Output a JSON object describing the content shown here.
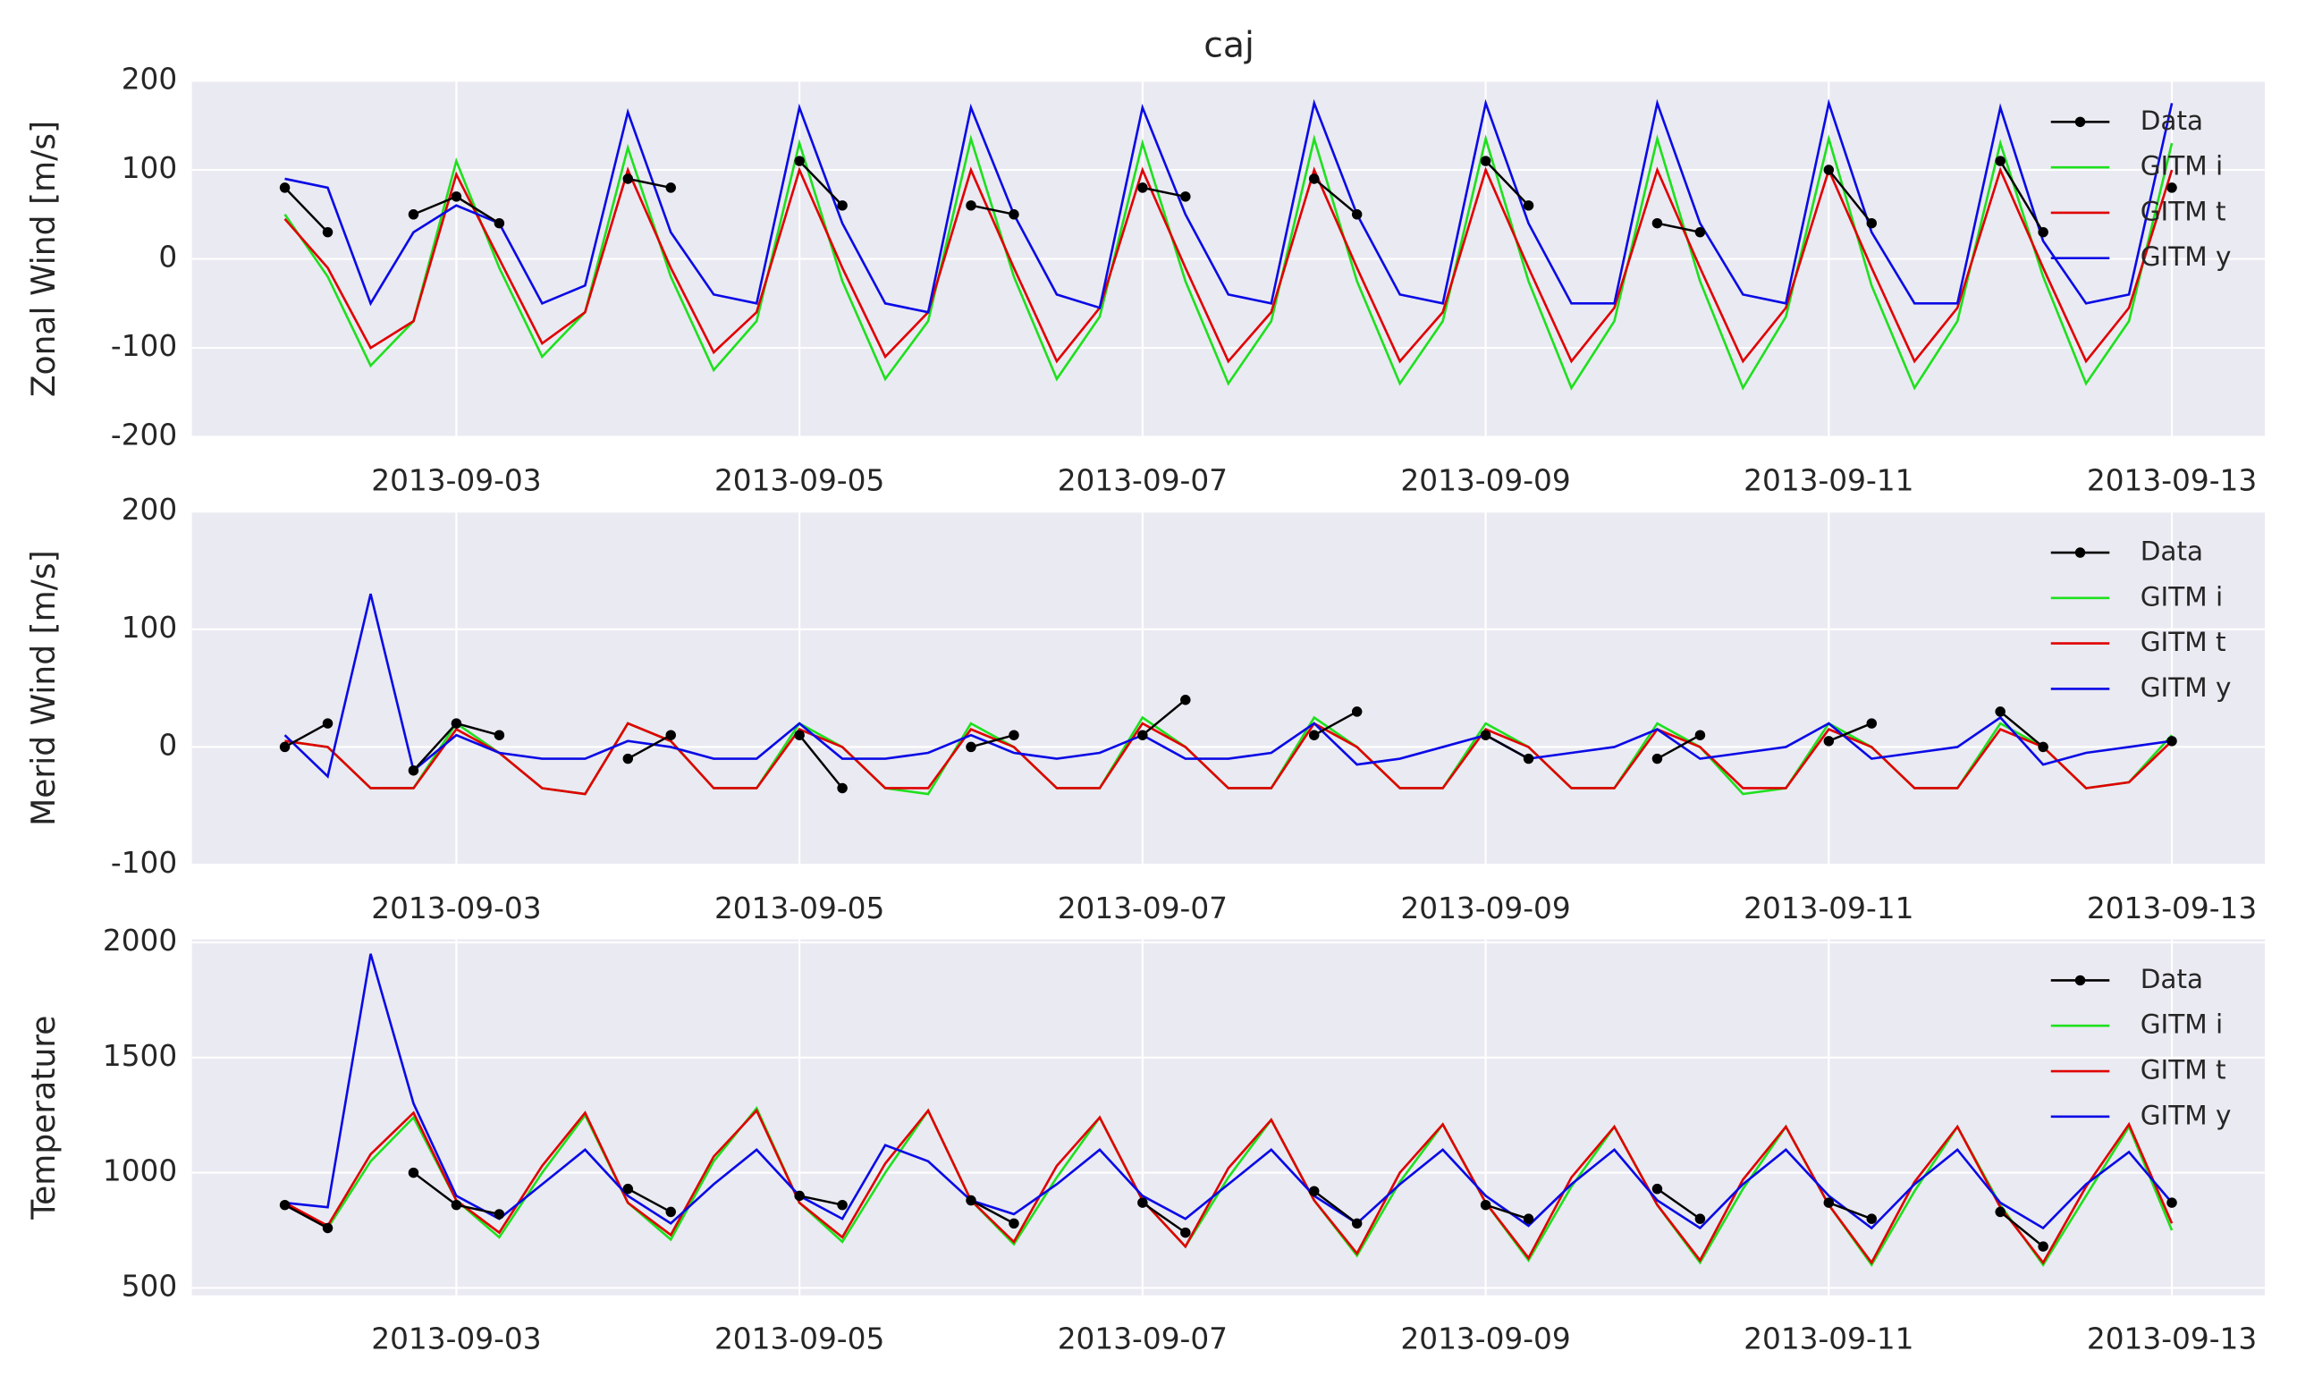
{
  "title": "caj",
  "chart_data": [
    {
      "type": "line",
      "ylabel": "Zonal Wind [m/s]",
      "grid": true,
      "legend": "upper right",
      "xlim": [
        "2013-09-01 11:00",
        "2013-09-13 13:00"
      ],
      "ylim": [
        -200,
        200
      ],
      "yticks": [
        -200,
        -100,
        0,
        100,
        200
      ],
      "xticks": [
        "2013-09-03",
        "2013-09-05",
        "2013-09-07",
        "2013-09-09",
        "2013-09-11",
        "2013-09-13"
      ],
      "x": [
        "2013-09-02 00:00",
        "2013-09-02 06:00",
        "2013-09-02 12:00",
        "2013-09-02 18:00",
        "2013-09-03 00:00",
        "2013-09-03 06:00",
        "2013-09-03 12:00",
        "2013-09-03 18:00",
        "2013-09-04 00:00",
        "2013-09-04 06:00",
        "2013-09-04 12:00",
        "2013-09-04 18:00",
        "2013-09-05 00:00",
        "2013-09-05 06:00",
        "2013-09-05 12:00",
        "2013-09-05 18:00",
        "2013-09-06 00:00",
        "2013-09-06 06:00",
        "2013-09-06 12:00",
        "2013-09-06 18:00",
        "2013-09-07 00:00",
        "2013-09-07 06:00",
        "2013-09-07 12:00",
        "2013-09-07 18:00",
        "2013-09-08 00:00",
        "2013-09-08 06:00",
        "2013-09-08 12:00",
        "2013-09-08 18:00",
        "2013-09-09 00:00",
        "2013-09-09 06:00",
        "2013-09-09 12:00",
        "2013-09-09 18:00",
        "2013-09-10 00:00",
        "2013-09-10 06:00",
        "2013-09-10 12:00",
        "2013-09-10 18:00",
        "2013-09-11 00:00",
        "2013-09-11 06:00",
        "2013-09-11 12:00",
        "2013-09-11 18:00",
        "2013-09-12 00:00",
        "2013-09-12 06:00",
        "2013-09-12 12:00",
        "2013-09-12 18:00",
        "2013-09-13 00:00"
      ],
      "series": [
        {
          "name": "Data",
          "color": "#000000",
          "marker": true,
          "values": [
            80,
            30,
            null,
            50,
            70,
            40,
            null,
            null,
            90,
            80,
            null,
            null,
            110,
            60,
            null,
            null,
            60,
            50,
            null,
            null,
            80,
            70,
            null,
            null,
            90,
            50,
            null,
            null,
            110,
            60,
            null,
            null,
            40,
            30,
            null,
            null,
            100,
            40,
            null,
            null,
            110,
            30,
            null,
            null,
            80
          ]
        },
        {
          "name": "GITM i",
          "color": "#1ee01e",
          "values": [
            50,
            -20,
            -120,
            -70,
            110,
            -10,
            -110,
            -60,
            125,
            -20,
            -125,
            -70,
            130,
            -25,
            -135,
            -70,
            135,
            -20,
            -135,
            -65,
            130,
            -25,
            -140,
            -70,
            135,
            -25,
            -140,
            -70,
            135,
            -25,
            -145,
            -70,
            135,
            -25,
            -145,
            -65,
            135,
            -30,
            -145,
            -70,
            130,
            -20,
            -140,
            -70,
            130
          ]
        },
        {
          "name": "GITM t",
          "color": "#e00000",
          "values": [
            45,
            -10,
            -100,
            -70,
            95,
            0,
            -95,
            -60,
            100,
            -10,
            -105,
            -60,
            100,
            -10,
            -110,
            -60,
            100,
            -10,
            -115,
            -55,
            100,
            -10,
            -115,
            -60,
            100,
            -10,
            -115,
            -60,
            100,
            -10,
            -115,
            -55,
            100,
            -10,
            -115,
            -55,
            100,
            -10,
            -115,
            -55,
            100,
            -10,
            -115,
            -55,
            100
          ]
        },
        {
          "name": "GITM y",
          "color": "#0a0ae6",
          "values": [
            90,
            80,
            -50,
            30,
            60,
            40,
            -50,
            -30,
            165,
            30,
            -40,
            -50,
            170,
            40,
            -50,
            -60,
            170,
            50,
            -40,
            -55,
            170,
            50,
            -40,
            -50,
            175,
            50,
            -40,
            -50,
            175,
            40,
            -50,
            -50,
            175,
            40,
            -40,
            -50,
            175,
            30,
            -50,
            -50,
            170,
            20,
            -50,
            -40,
            175
          ]
        }
      ]
    },
    {
      "type": "line",
      "ylabel": "Merid Wind [m/s]",
      "grid": true,
      "legend": "upper right",
      "xlim": [
        "2013-09-01 11:00",
        "2013-09-13 13:00"
      ],
      "ylim": [
        -100,
        200
      ],
      "yticks": [
        -100,
        0,
        100,
        200
      ],
      "xticks": [
        "2013-09-03",
        "2013-09-05",
        "2013-09-07",
        "2013-09-09",
        "2013-09-11",
        "2013-09-13"
      ],
      "x": [
        "2013-09-02 00:00",
        "2013-09-02 06:00",
        "2013-09-02 12:00",
        "2013-09-02 18:00",
        "2013-09-03 00:00",
        "2013-09-03 06:00",
        "2013-09-03 12:00",
        "2013-09-03 18:00",
        "2013-09-04 00:00",
        "2013-09-04 06:00",
        "2013-09-04 12:00",
        "2013-09-04 18:00",
        "2013-09-05 00:00",
        "2013-09-05 06:00",
        "2013-09-05 12:00",
        "2013-09-05 18:00",
        "2013-09-06 00:00",
        "2013-09-06 06:00",
        "2013-09-06 12:00",
        "2013-09-06 18:00",
        "2013-09-07 00:00",
        "2013-09-07 06:00",
        "2013-09-07 12:00",
        "2013-09-07 18:00",
        "2013-09-08 00:00",
        "2013-09-08 06:00",
        "2013-09-08 12:00",
        "2013-09-08 18:00",
        "2013-09-09 00:00",
        "2013-09-09 06:00",
        "2013-09-09 12:00",
        "2013-09-09 18:00",
        "2013-09-10 00:00",
        "2013-09-10 06:00",
        "2013-09-10 12:00",
        "2013-09-10 18:00",
        "2013-09-11 00:00",
        "2013-09-11 06:00",
        "2013-09-11 12:00",
        "2013-09-11 18:00",
        "2013-09-12 00:00",
        "2013-09-12 06:00",
        "2013-09-12 12:00",
        "2013-09-12 18:00",
        "2013-09-13 00:00"
      ],
      "series": [
        {
          "name": "Data",
          "color": "#000000",
          "marker": true,
          "values": [
            0,
            20,
            null,
            -20,
            20,
            10,
            null,
            null,
            -10,
            10,
            null,
            null,
            10,
            -35,
            null,
            null,
            0,
            10,
            null,
            null,
            10,
            40,
            null,
            null,
            10,
            30,
            null,
            null,
            10,
            -10,
            null,
            null,
            -10,
            10,
            null,
            null,
            5,
            20,
            null,
            null,
            30,
            0,
            null,
            null,
            5
          ]
        },
        {
          "name": "GITM i",
          "color": "#1ee01e",
          "values": [
            5,
            0,
            -35,
            -35,
            20,
            -5,
            -35,
            -40,
            20,
            5,
            -35,
            -35,
            20,
            0,
            -35,
            -40,
            20,
            0,
            -35,
            -35,
            25,
            0,
            -35,
            -35,
            25,
            0,
            -35,
            -35,
            20,
            0,
            -35,
            -35,
            20,
            0,
            -40,
            -35,
            20,
            0,
            -35,
            -35,
            20,
            0,
            -35,
            -30,
            10
          ]
        },
        {
          "name": "GITM t",
          "color": "#e00000",
          "values": [
            5,
            0,
            -35,
            -35,
            15,
            -5,
            -35,
            -40,
            20,
            5,
            -35,
            -35,
            15,
            0,
            -35,
            -35,
            15,
            0,
            -35,
            -35,
            20,
            0,
            -35,
            -35,
            20,
            0,
            -35,
            -35,
            15,
            0,
            -35,
            -35,
            15,
            0,
            -35,
            -35,
            15,
            0,
            -35,
            -35,
            15,
            0,
            -35,
            -30,
            5
          ]
        },
        {
          "name": "GITM y",
          "color": "#0a0ae6",
          "values": [
            10,
            -25,
            130,
            -20,
            10,
            -5,
            -10,
            -10,
            5,
            0,
            -10,
            -10,
            20,
            -10,
            -10,
            -5,
            10,
            -5,
            -10,
            -5,
            10,
            -10,
            -10,
            -5,
            20,
            -15,
            -10,
            0,
            10,
            -10,
            -5,
            0,
            15,
            -10,
            -5,
            0,
            20,
            -10,
            -5,
            0,
            25,
            -15,
            -5,
            0,
            5
          ]
        }
      ]
    },
    {
      "type": "line",
      "ylabel": "Temperature",
      "grid": true,
      "legend": "upper right",
      "xlim": [
        "2013-09-01 11:00",
        "2013-09-13 13:00"
      ],
      "ylim": [
        468,
        2013
      ],
      "yticks": [
        500,
        1000,
        1500,
        2000
      ],
      "xticks": [
        "2013-09-03",
        "2013-09-05",
        "2013-09-07",
        "2013-09-09",
        "2013-09-11",
        "2013-09-13"
      ],
      "x": [
        "2013-09-02 00:00",
        "2013-09-02 06:00",
        "2013-09-02 12:00",
        "2013-09-02 18:00",
        "2013-09-03 00:00",
        "2013-09-03 06:00",
        "2013-09-03 12:00",
        "2013-09-03 18:00",
        "2013-09-04 00:00",
        "2013-09-04 06:00",
        "2013-09-04 12:00",
        "2013-09-04 18:00",
        "2013-09-05 00:00",
        "2013-09-05 06:00",
        "2013-09-05 12:00",
        "2013-09-05 18:00",
        "2013-09-06 00:00",
        "2013-09-06 06:00",
        "2013-09-06 12:00",
        "2013-09-06 18:00",
        "2013-09-07 00:00",
        "2013-09-07 06:00",
        "2013-09-07 12:00",
        "2013-09-07 18:00",
        "2013-09-08 00:00",
        "2013-09-08 06:00",
        "2013-09-08 12:00",
        "2013-09-08 18:00",
        "2013-09-09 00:00",
        "2013-09-09 06:00",
        "2013-09-09 12:00",
        "2013-09-09 18:00",
        "2013-09-10 00:00",
        "2013-09-10 06:00",
        "2013-09-10 12:00",
        "2013-09-10 18:00",
        "2013-09-11 00:00",
        "2013-09-11 06:00",
        "2013-09-11 12:00",
        "2013-09-11 18:00",
        "2013-09-12 00:00",
        "2013-09-12 06:00",
        "2013-09-12 12:00",
        "2013-09-12 18:00",
        "2013-09-13 00:00"
      ],
      "series": [
        {
          "name": "Data",
          "color": "#000000",
          "marker": true,
          "values": [
            860,
            760,
            null,
            1000,
            860,
            820,
            null,
            null,
            930,
            830,
            null,
            null,
            900,
            860,
            null,
            null,
            880,
            780,
            null,
            null,
            870,
            740,
            null,
            null,
            920,
            780,
            null,
            null,
            860,
            800,
            null,
            null,
            930,
            800,
            null,
            null,
            870,
            800,
            null,
            null,
            830,
            680,
            null,
            null,
            870
          ]
        },
        {
          "name": "GITM i",
          "color": "#1ee01e",
          "values": [
            870,
            760,
            1050,
            1240,
            880,
            720,
            1000,
            1250,
            870,
            710,
            1050,
            1280,
            870,
            700,
            1000,
            1270,
            880,
            690,
            980,
            1240,
            880,
            680,
            980,
            1230,
            880,
            640,
            960,
            1210,
            870,
            620,
            940,
            1200,
            860,
            610,
            930,
            1200,
            860,
            600,
            920,
            1200,
            860,
            600,
            900,
            1200,
            750
          ]
        },
        {
          "name": "GITM t",
          "color": "#e00000",
          "values": [
            870,
            770,
            1080,
            1260,
            880,
            740,
            1030,
            1260,
            870,
            730,
            1070,
            1270,
            870,
            720,
            1040,
            1270,
            880,
            700,
            1030,
            1240,
            880,
            680,
            1020,
            1230,
            880,
            650,
            1000,
            1210,
            870,
            630,
            980,
            1200,
            860,
            620,
            970,
            1200,
            860,
            610,
            960,
            1200,
            850,
            610,
            940,
            1210,
            780
          ]
        },
        {
          "name": "GITM y",
          "color": "#0a0ae6",
          "values": [
            870,
            850,
            1950,
            1300,
            900,
            800,
            950,
            1100,
            900,
            780,
            950,
            1100,
            900,
            800,
            1120,
            1050,
            880,
            820,
            950,
            1100,
            900,
            800,
            950,
            1100,
            900,
            780,
            950,
            1100,
            900,
            770,
            950,
            1100,
            880,
            760,
            950,
            1100,
            900,
            760,
            950,
            1100,
            870,
            760,
            950,
            1090,
            870
          ]
        }
      ]
    }
  ]
}
